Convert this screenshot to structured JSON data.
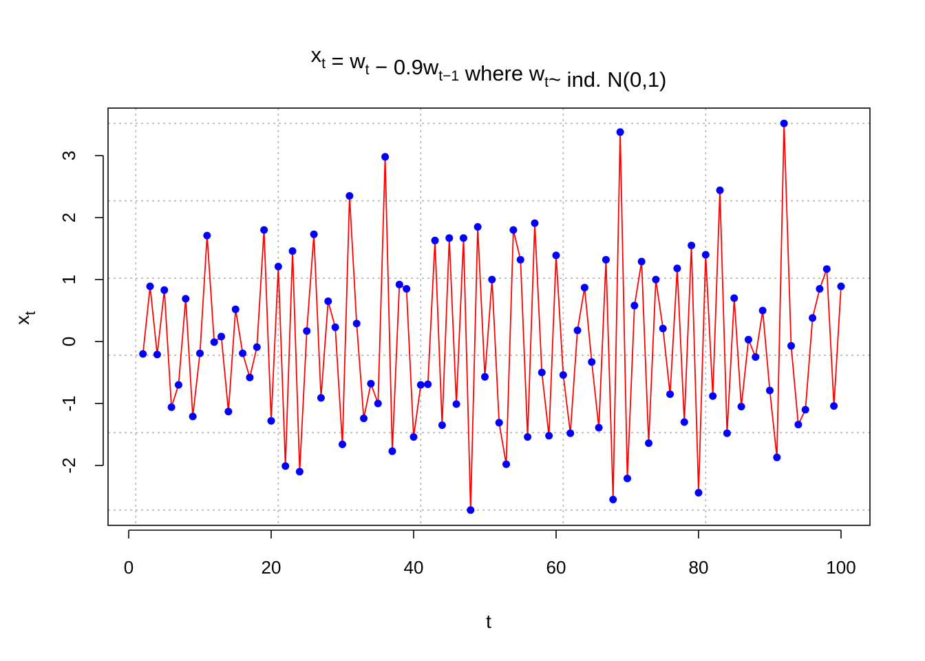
{
  "chart_data": {
    "type": "line",
    "title": {
      "parts": [
        {
          "text": "x",
          "sub": "t"
        },
        {
          "text": " = w",
          "sub": "t"
        },
        {
          "text": " − 0.9w",
          "sub": "t−1"
        },
        {
          "text": " where w",
          "sub": "t"
        },
        {
          "text": "~ ind. N(0,1)",
          "sub": ""
        }
      ]
    },
    "xlabel": "t",
    "ylabel": {
      "text": "x",
      "sub": "t"
    },
    "xlim": [
      0,
      100
    ],
    "ylim": [
      -2.7,
      3.5
    ],
    "x_ticks": [
      0,
      20,
      40,
      60,
      80,
      100
    ],
    "x_tick_labels": [
      "0",
      "20",
      "40",
      "60",
      "80",
      "100"
    ],
    "y_ticks": [
      -2,
      -1,
      0,
      1,
      2,
      3
    ],
    "y_tick_labels": [
      "-2",
      "-1",
      "0",
      "1",
      "2",
      "3"
    ],
    "grid": true,
    "grid_x": [
      1,
      21,
      41,
      61,
      81
    ],
    "grid_y": [
      -2.72,
      -1.47,
      -0.22,
      1.02,
      2.27,
      3.52
    ],
    "line_color": "#ff0000",
    "point_color": "#0000ff",
    "series": [
      {
        "x": [
          2,
          3,
          4,
          5,
          6,
          7,
          8,
          9,
          10,
          11,
          12,
          13,
          14,
          15,
          16,
          17,
          18,
          19,
          20,
          21,
          22,
          23,
          24,
          25,
          26,
          27,
          28,
          29,
          30,
          31,
          32,
          33,
          34,
          35,
          36,
          37,
          38,
          39,
          40,
          41,
          42,
          43,
          44,
          45,
          46,
          47,
          48,
          49,
          50,
          51,
          52,
          53,
          54,
          55,
          56,
          57,
          58,
          59,
          60,
          61,
          62,
          63,
          64,
          65,
          66,
          67,
          68,
          69,
          70,
          71,
          72,
          73,
          74,
          75,
          76,
          77,
          78,
          79,
          80,
          81,
          82,
          83,
          84,
          85,
          86,
          87,
          88,
          89,
          90,
          91,
          92,
          93,
          94,
          95,
          96,
          97,
          98,
          99,
          100
        ],
        "values": [
          -0.2,
          0.89,
          -0.21,
          0.83,
          -1.06,
          -0.7,
          0.69,
          -1.21,
          -0.19,
          1.71,
          -0.01,
          0.08,
          -1.13,
          0.52,
          -0.19,
          -0.58,
          -0.09,
          1.8,
          -1.28,
          1.21,
          -2.01,
          1.46,
          -2.1,
          0.17,
          1.73,
          -0.91,
          0.65,
          0.23,
          -1.66,
          2.35,
          0.29,
          -1.24,
          -0.68,
          -1.0,
          2.98,
          -1.77,
          0.92,
          0.85,
          -1.54,
          -0.7,
          -0.69,
          1.63,
          -1.35,
          1.67,
          -1.01,
          1.67,
          -2.72,
          1.85,
          -0.57,
          1.0,
          -1.31,
          -1.98,
          1.8,
          1.32,
          -1.54,
          1.91,
          -0.5,
          -1.52,
          1.39,
          -0.54,
          -1.48,
          0.18,
          0.87,
          -0.33,
          -1.39,
          1.32,
          -2.55,
          3.38,
          -2.21,
          0.58,
          1.29,
          -1.64,
          1.0,
          0.21,
          -0.85,
          1.18,
          -1.3,
          1.55,
          -2.44,
          1.4,
          -0.88,
          2.44,
          -1.48,
          0.7,
          -1.05,
          0.03,
          -0.25,
          0.5,
          -0.79,
          -1.87,
          3.52,
          -0.07,
          -1.34,
          -1.1,
          0.38,
          0.85,
          1.17,
          -1.04,
          0.89
        ]
      }
    ]
  }
}
